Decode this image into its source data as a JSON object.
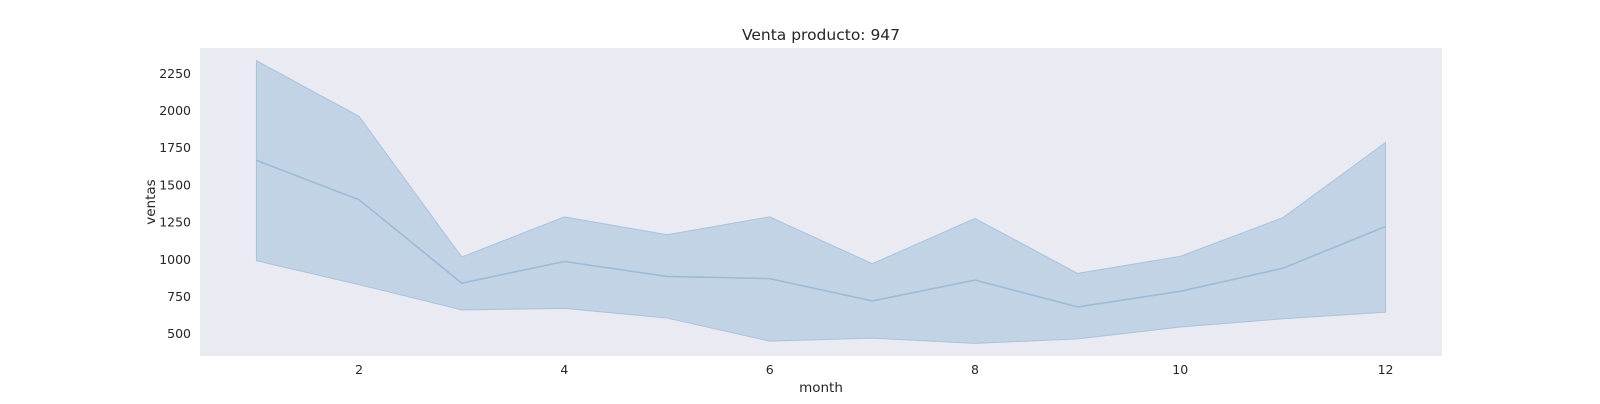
{
  "chart_data": {
    "type": "area",
    "title": "Venta producto: 947",
    "xlabel": "month",
    "ylabel": "ventas",
    "xlim": [
      0.45,
      12.55
    ],
    "ylim": [
      350,
      2420
    ],
    "xticks": [
      2,
      4,
      6,
      8,
      10,
      12
    ],
    "yticks": [
      500,
      750,
      1000,
      1250,
      1500,
      1750,
      2000,
      2250
    ],
    "grid": false,
    "legend": "none",
    "colors": {
      "plot_background": "#eaeaf2",
      "line": "#9bbbd9",
      "band_fill": "#c2d3e5",
      "band_edge": "#a9c3de"
    },
    "series": [
      {
        "x": [
          1,
          2,
          3,
          4,
          5,
          6,
          7,
          8,
          9,
          10,
          11,
          12
        ],
        "mean": [
          1665,
          1400,
          840,
          985,
          885,
          870,
          720,
          860,
          680,
          785,
          940,
          1220
        ],
        "upper": [
          2335,
          1960,
          1015,
          1285,
          1165,
          1285,
          970,
          1275,
          905,
          1020,
          1280,
          1785
        ],
        "lower": [
          990,
          830,
          660,
          670,
          605,
          450,
          470,
          435,
          465,
          545,
          600,
          645
        ]
      }
    ]
  }
}
